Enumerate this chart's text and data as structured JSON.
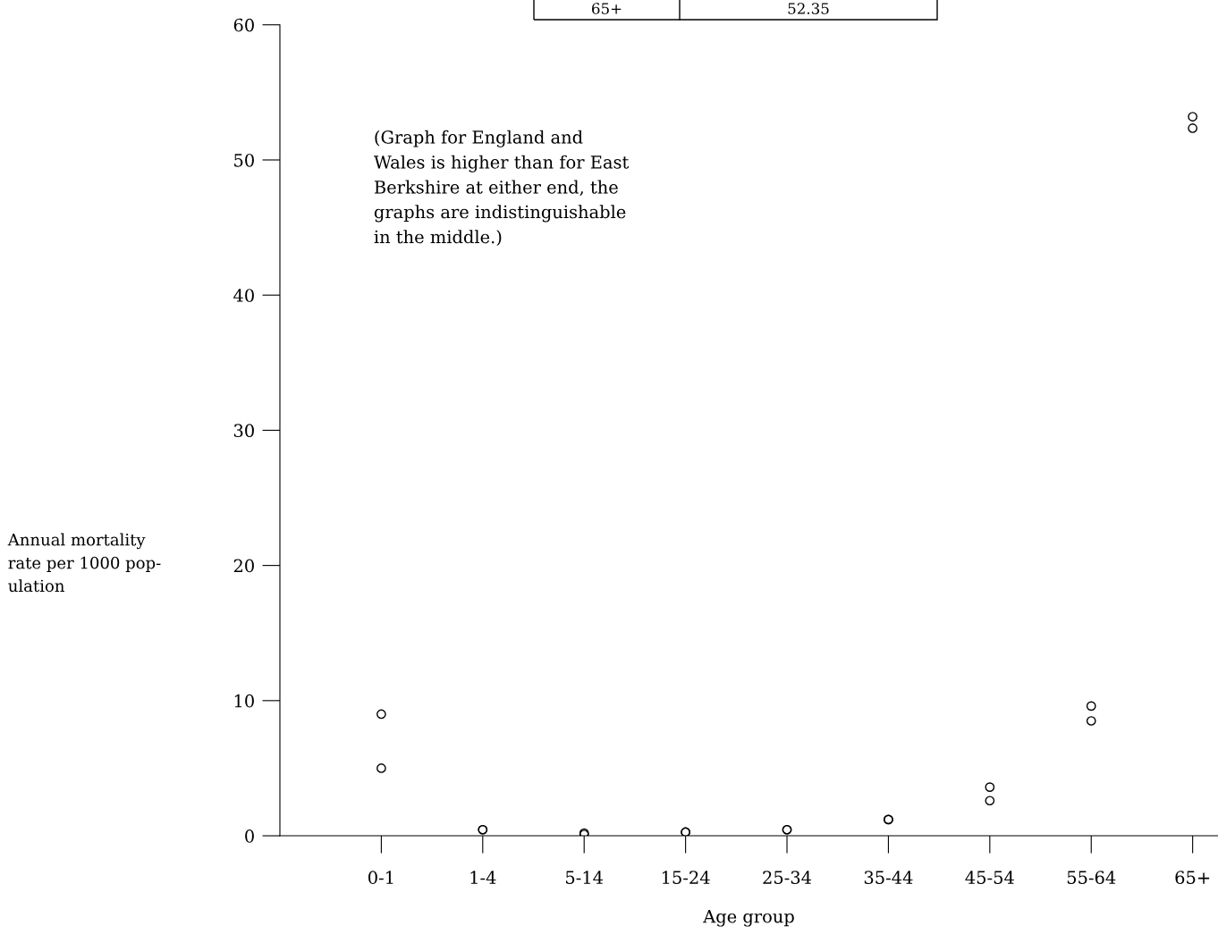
{
  "chart_data": {
    "type": "scatter",
    "xlabel": "Age group",
    "ylabel": "Annual mortality\nrate per 1000 pop-\nulation",
    "categories": [
      "0-1",
      "1-4",
      "5-14",
      "15-24",
      "25-34",
      "35-44",
      "45-54",
      "55-64",
      "65+"
    ],
    "series": [
      {
        "color": "#000000",
        "values": [
          9.0,
          0.45,
          0.2,
          0.27,
          0.45,
          1.2,
          3.6,
          9.6,
          53.2
        ]
      },
      {
        "color": "#000000",
        "values": [
          5.0,
          0.45,
          0.1,
          0.27,
          0.45,
          1.2,
          2.6,
          8.5,
          52.35
        ]
      }
    ],
    "ylim": [
      0,
      60
    ],
    "yticks": [
      0,
      10,
      20,
      30,
      40,
      50,
      60
    ],
    "marker": "circle",
    "grid": false,
    "legend": false,
    "annotations": [
      "(Graph for England and\nWales is higher than for East\nBerkshire at either end, the\ngraphs are indistinguishable\nin the middle.)",
      "65+",
      "52.35"
    ]
  }
}
